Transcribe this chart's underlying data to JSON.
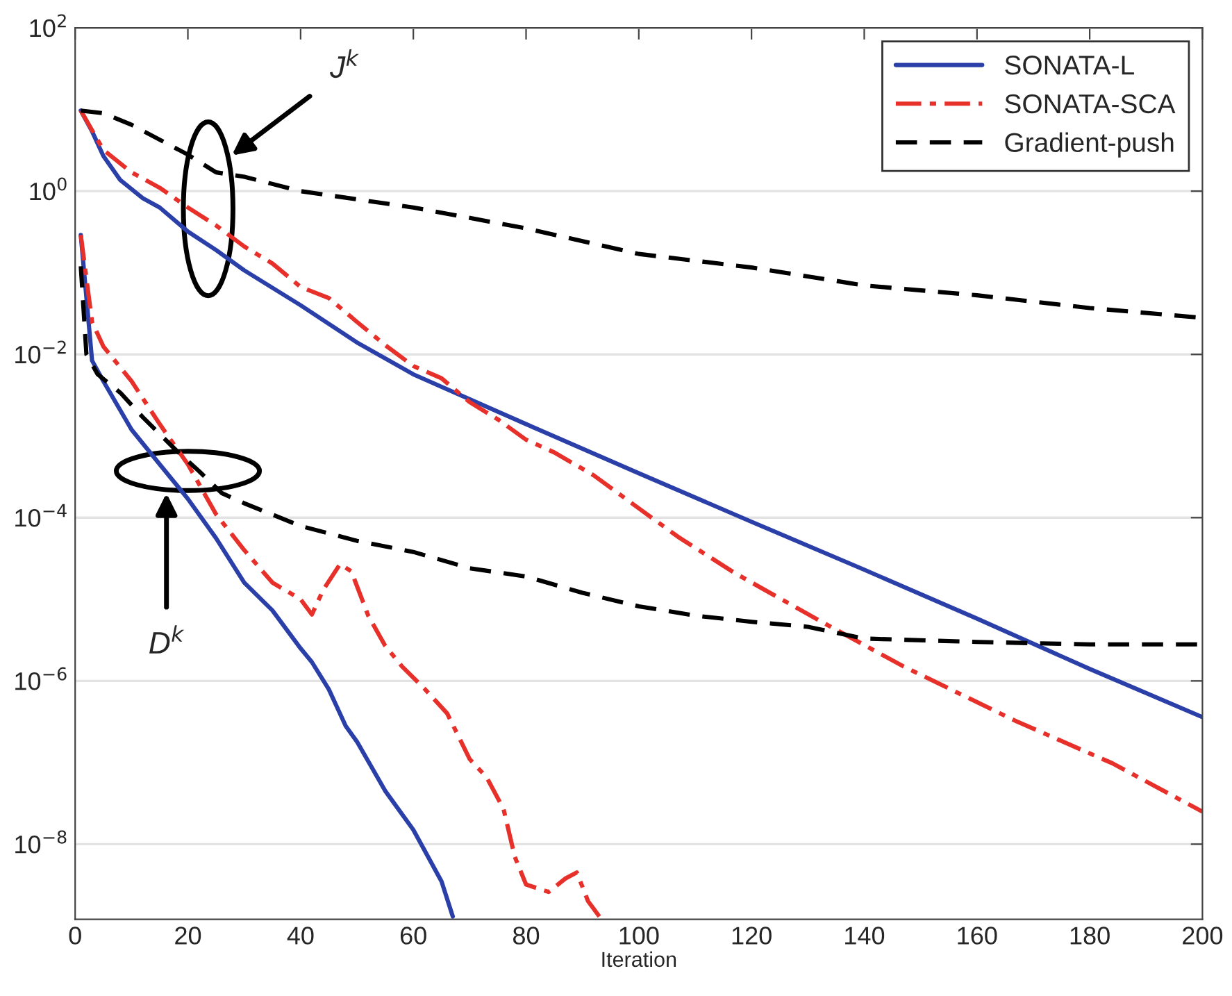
{
  "chart_data": {
    "type": "line",
    "xlabel": "Iteration",
    "xlim": [
      0,
      200
    ],
    "xticks": [
      0,
      20,
      40,
      60,
      80,
      100,
      120,
      140,
      160,
      180,
      200
    ],
    "ylim": [
      1.2e-09,
      100
    ],
    "log": true,
    "grid": "y",
    "legend": "top right",
    "yticks": [
      {
        "value": 1e-08,
        "label": "10$^{−8}$"
      },
      {
        "value": 1e-06,
        "label": "10$^{−6}$"
      },
      {
        "value": 0.0001,
        "label": "10$^{−4}$"
      },
      {
        "value": 0.01,
        "label": "10$^{−2}$"
      },
      {
        "value": 1,
        "label": "10$^{0}$"
      },
      {
        "value": 100,
        "label": "10$^{2}$"
      }
    ],
    "series": [
      {
        "name": "SONATA-L",
        "color": "#2b3fa8",
        "line_style": "solid",
        "x": [
          1,
          3,
          5,
          8,
          12,
          15,
          20,
          25,
          30,
          40,
          50,
          60,
          80,
          100,
          120,
          140,
          160,
          180,
          200
        ],
        "values": [
          9.7,
          5.4,
          2.7,
          1.37,
          0.82,
          0.63,
          0.32,
          0.19,
          0.107,
          0.04,
          0.014,
          0.0057,
          0.0014,
          0.00035,
          8.9e-05,
          2.3e-05,
          5.8e-06,
          1.4e-06,
          3.6e-07
        ]
      },
      {
        "name": "SONATA-SCA",
        "color": "#e8302a",
        "line_style": "dashdot",
        "x": [
          1,
          5,
          10,
          15,
          20,
          25,
          30,
          35,
          40,
          45,
          50,
          55,
          60,
          65,
          70,
          75,
          80,
          85,
          92,
          100,
          107,
          117,
          132,
          147,
          167,
          184,
          200
        ],
        "values": [
          9.7,
          3.2,
          1.7,
          1.1,
          0.63,
          0.38,
          0.21,
          0.13,
          0.067,
          0.049,
          0.025,
          0.013,
          0.0072,
          0.0051,
          0.0026,
          0.0016,
          0.0009,
          0.00063,
          0.00033,
          0.00013,
          5.8e-05,
          2.1e-05,
          5.5e-06,
          1.5e-06,
          3.2e-07,
          9.8e-08,
          2.5e-08
        ]
      },
      {
        "name": "Gradient-push",
        "color": "#000000",
        "line_style": "dashed",
        "x": [
          1,
          5,
          10,
          20,
          25,
          30,
          40,
          60,
          80,
          100,
          120,
          140,
          160,
          180,
          200
        ],
        "values": [
          9.7,
          9.0,
          6.5,
          2.8,
          1.7,
          1.5,
          1.0,
          0.63,
          0.35,
          0.17,
          0.116,
          0.07,
          0.053,
          0.037,
          0.028
        ]
      },
      {
        "color": "#2b3fa8",
        "line_style": "solid",
        "x": [
          1,
          3,
          5,
          10,
          15,
          20,
          25,
          30,
          35,
          40,
          42,
          45,
          48,
          50,
          55,
          60,
          65,
          67
        ],
        "values": [
          0.29,
          0.0084,
          0.0047,
          0.0012,
          0.00045,
          0.00017,
          5.6e-05,
          1.6e-05,
          7.3e-06,
          2.5e-06,
          1.7e-06,
          7.9e-07,
          2.8e-07,
          1.8e-07,
          4.5e-08,
          1.5e-08,
          3.5e-09,
          1.3e-09
        ]
      },
      {
        "color": "#e8302a",
        "line_style": "dashdot",
        "x": [
          1,
          3,
          5,
          10,
          15,
          20,
          25,
          30,
          35,
          40,
          42,
          44,
          47,
          49,
          52,
          55,
          58,
          62,
          66,
          70,
          73,
          76,
          78,
          80,
          84,
          87,
          89,
          91,
          93
        ],
        "values": [
          0.29,
          0.025,
          0.0125,
          0.0047,
          0.0014,
          0.00045,
          0.00011,
          4e-05,
          1.6e-05,
          1e-05,
          6.5e-06,
          1.3e-05,
          2.7e-05,
          2.2e-05,
          6.3e-06,
          2.7e-06,
          1.5e-06,
          8e-07,
          4e-07,
          1.1e-07,
          6.6e-08,
          2.7e-08,
          7e-09,
          3.2e-09,
          2.6e-09,
          3.8e-09,
          4.5e-09,
          2e-09,
          1.3e-09
        ]
      },
      {
        "color": "#000000",
        "line_style": "dashed",
        "x": [
          1,
          2,
          4,
          8,
          12,
          18,
          22,
          26,
          30,
          40,
          50,
          60,
          70,
          80,
          90,
          100,
          110,
          120,
          130,
          140,
          160,
          180,
          200
        ],
        "values": [
          0.12,
          0.01,
          0.0057,
          0.0034,
          0.0017,
          0.00066,
          0.00037,
          0.0002,
          0.00015,
          7.9e-05,
          5.2e-05,
          3.8e-05,
          2.4e-05,
          1.9e-05,
          1.2e-05,
          8.2e-06,
          6.3e-06,
          5.3e-06,
          4.6e-06,
          3.3e-06,
          3e-06,
          2.8e-06,
          2.8e-06
        ]
      }
    ],
    "annotations": [
      "J$^{k}$",
      "D$^{k}$"
    ]
  }
}
